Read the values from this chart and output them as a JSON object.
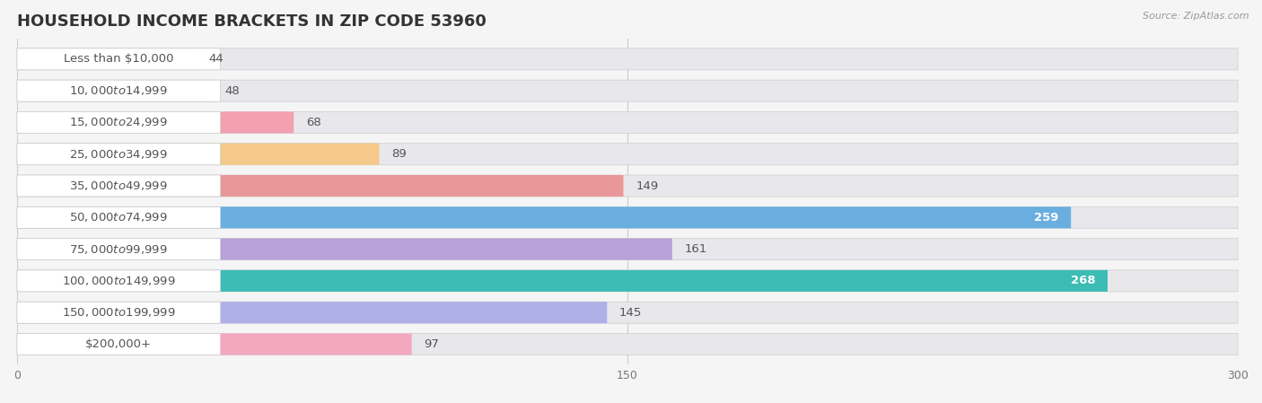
{
  "title": "HOUSEHOLD INCOME BRACKETS IN ZIP CODE 53960",
  "source": "Source: ZipAtlas.com",
  "categories": [
    "Less than $10,000",
    "$10,000 to $14,999",
    "$15,000 to $24,999",
    "$25,000 to $34,999",
    "$35,000 to $49,999",
    "$50,000 to $74,999",
    "$75,000 to $99,999",
    "$100,000 to $149,999",
    "$150,000 to $199,999",
    "$200,000+"
  ],
  "values": [
    44,
    48,
    68,
    89,
    149,
    259,
    161,
    268,
    145,
    97
  ],
  "bar_colors": [
    "#5ecece",
    "#a8a8e8",
    "#f4a0b0",
    "#f5c98a",
    "#e89898",
    "#6aaee0",
    "#b8a0d8",
    "#3cbcb4",
    "#b0b0e8",
    "#f4a8c0"
  ],
  "xlim": [
    0,
    300
  ],
  "xticks": [
    0,
    150,
    300
  ],
  "background_color": "#f5f5f5",
  "bar_bg_color": "#e8e8ec",
  "title_fontsize": 13,
  "label_fontsize": 9.5,
  "value_fontsize": 9.5,
  "bar_height": 0.68,
  "label_white_color": "#ffffff",
  "label_dark_color": "#555555",
  "value_white_threshold": 220
}
